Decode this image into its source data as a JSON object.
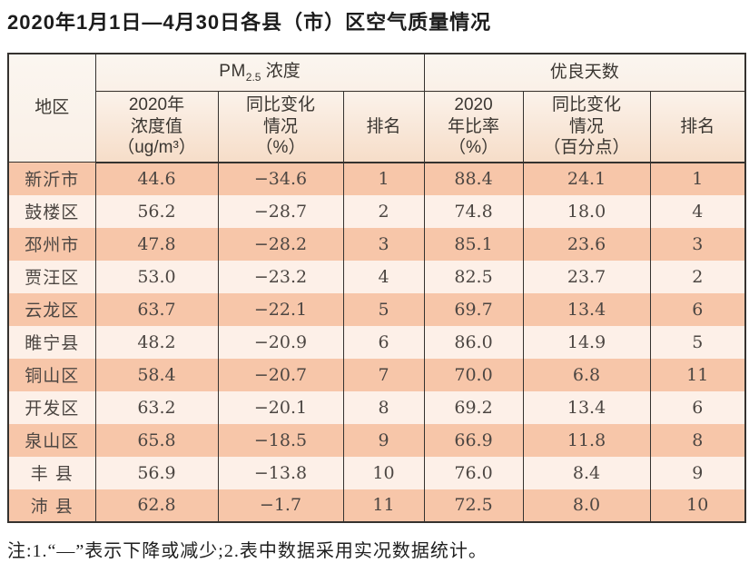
{
  "title": "2020年1月1日—4月30日各县（市）区空气质量情况",
  "colors": {
    "row_salmon": "#f7c6a9",
    "row_light": "#fdf0e8",
    "header_top": "#fbf6f0",
    "header_bottom": "#f6ddc8",
    "border": "#35322f",
    "body_text": "#4c4642",
    "header_text": "#3a3631"
  },
  "table": {
    "headers": {
      "region": "地区",
      "pm_group": {
        "prefix": "PM",
        "sub": "2.5",
        "suffix": " 浓度"
      },
      "good_group": "优良天数",
      "conc": {
        "l1": "2020年",
        "l2": "浓度值",
        "l3": "（ug/m³）"
      },
      "pm_change": {
        "l1": "同比变化",
        "l2": "情况",
        "l3": "（%）"
      },
      "pm_rank": "排名",
      "ratio": {
        "l1": "2020",
        "l2": "年比率",
        "l3": "（%）"
      },
      "good_change": {
        "l1": "同比变化",
        "l2": "情况",
        "l3": "（百分点）"
      },
      "good_rank": "排名"
    },
    "rows": [
      {
        "region": "新沂市",
        "pm": "44.6",
        "pm_change": "−34.6",
        "pm_rank": "1",
        "ratio": "88.4",
        "ratio_change": "24.1",
        "rank": "1"
      },
      {
        "region": "鼓楼区",
        "pm": "56.2",
        "pm_change": "−28.7",
        "pm_rank": "2",
        "ratio": "74.8",
        "ratio_change": "18.0",
        "rank": "4"
      },
      {
        "region": "邳州市",
        "pm": "47.8",
        "pm_change": "−28.2",
        "pm_rank": "3",
        "ratio": "85.1",
        "ratio_change": "23.6",
        "rank": "3"
      },
      {
        "region": "贾汪区",
        "pm": "53.0",
        "pm_change": "−23.2",
        "pm_rank": "4",
        "ratio": "82.5",
        "ratio_change": "23.7",
        "rank": "2"
      },
      {
        "region": "云龙区",
        "pm": "63.7",
        "pm_change": "−22.1",
        "pm_rank": "5",
        "ratio": "69.7",
        "ratio_change": "13.4",
        "rank": "6"
      },
      {
        "region": "睢宁县",
        "pm": "48.2",
        "pm_change": "−20.9",
        "pm_rank": "6",
        "ratio": "86.0",
        "ratio_change": "14.9",
        "rank": "5"
      },
      {
        "region": "铜山区",
        "pm": "58.4",
        "pm_change": "−20.7",
        "pm_rank": "7",
        "ratio": "70.0",
        "ratio_change": "6.8",
        "rank": "11"
      },
      {
        "region": "开发区",
        "pm": "63.2",
        "pm_change": "−20.1",
        "pm_rank": "8",
        "ratio": "69.2",
        "ratio_change": "13.4",
        "rank": "6"
      },
      {
        "region": "泉山区",
        "pm": "65.8",
        "pm_change": "−18.5",
        "pm_rank": "9",
        "ratio": "66.9",
        "ratio_change": "11.8",
        "rank": "8"
      },
      {
        "region": "丰 县",
        "pm": "56.9",
        "pm_change": "−13.8",
        "pm_rank": "10",
        "ratio": "76.0",
        "ratio_change": "8.4",
        "rank": "9"
      },
      {
        "region": "沛 县",
        "pm": "62.8",
        "pm_change": "−1.7",
        "pm_rank": "11",
        "ratio": "72.5",
        "ratio_change": "8.0",
        "rank": "10"
      }
    ]
  },
  "note": "注:1.“—”表示下降或减少;2.表中数据采用实况数据统计。"
}
